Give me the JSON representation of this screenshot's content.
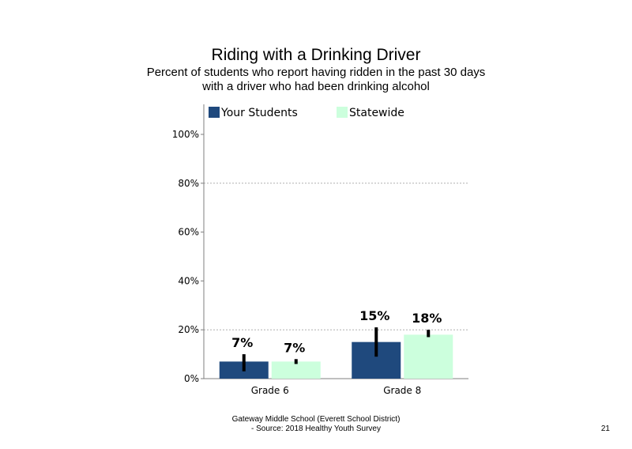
{
  "chart_data": {
    "type": "bar",
    "title": "Riding with a Drinking Driver",
    "subtitle_lines": [
      "Percent of students who report having ridden in the past 30 days",
      "with a driver who had been drinking alcohol"
    ],
    "categories": [
      "Grade 6",
      "Grade 8"
    ],
    "series": [
      {
        "name": "Your Students",
        "color": "#1f497d",
        "values": [
          7,
          15
        ],
        "labels": [
          "7%",
          "15%"
        ],
        "error_low": [
          3,
          9
        ],
        "error_high": [
          10,
          21
        ]
      },
      {
        "name": "Statewide",
        "color": "#ccffdd",
        "values": [
          7,
          18
        ],
        "labels": [
          "7%",
          "18%"
        ],
        "error_low": [
          6,
          17
        ],
        "error_high": [
          8,
          20
        ]
      }
    ],
    "ylim": [
      0,
      100
    ],
    "y_ticks": [
      0,
      20,
      40,
      60,
      80,
      100
    ],
    "y_tick_labels": [
      "0%",
      "20%",
      "40%",
      "60%",
      "80%",
      "100%"
    ],
    "gridlines": [
      20,
      80
    ],
    "grid": true,
    "legend_position": "top"
  },
  "footer": {
    "lines": [
      "Gateway Middle School (Everett School District)",
      "- Source: 2018 Healthy  Youth Survey"
    ]
  },
  "page_number": "21"
}
